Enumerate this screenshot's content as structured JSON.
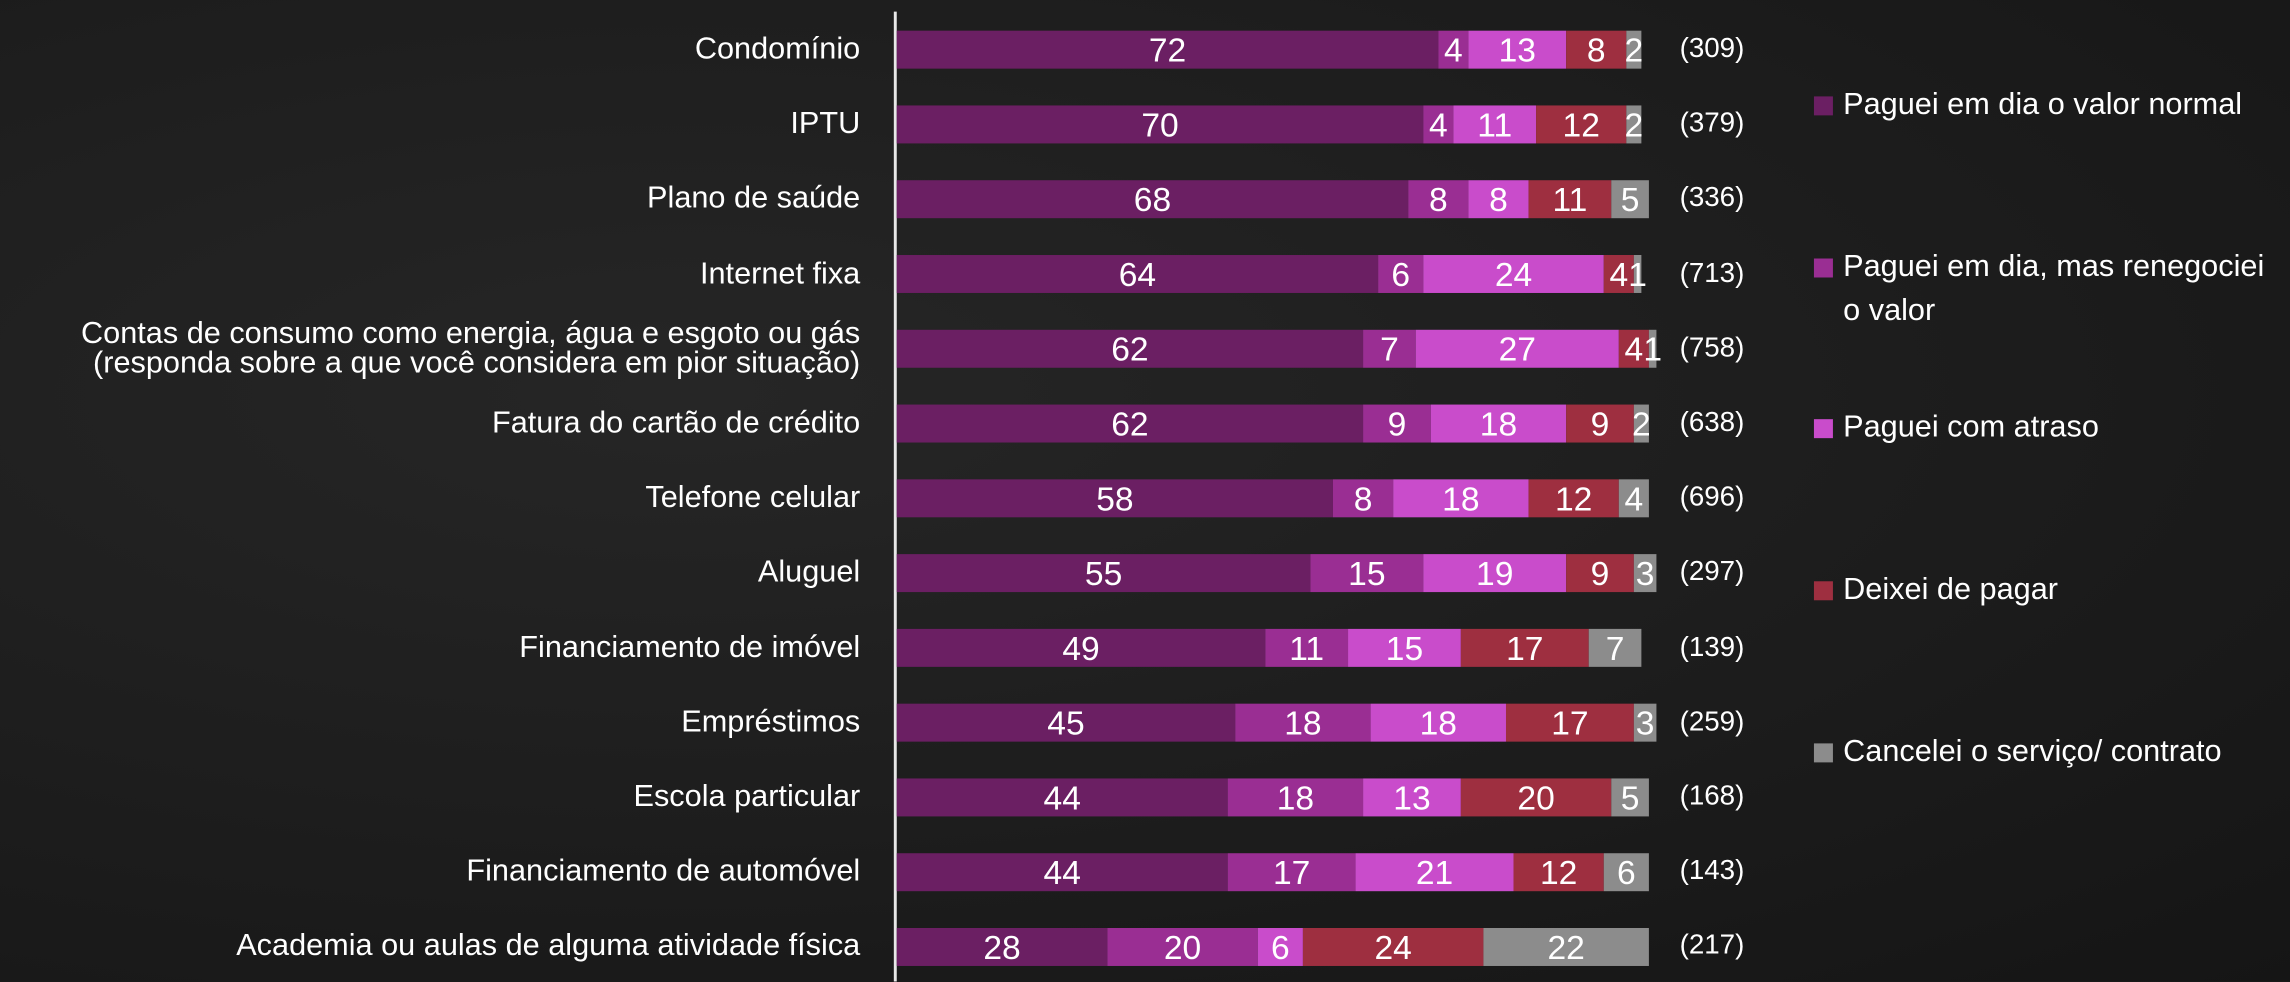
{
  "chart_data": {
    "type": "stacked-bar-horizontal",
    "categories": [
      "Condomínio",
      "IPTU",
      "Plano de saúde",
      "Internet fixa",
      "Contas de consumo como energia, água e esgoto ou gás\n(responda sobre a que você considera em pior situação)",
      "Fatura do cartão de crédito",
      "Telefone celular",
      "Aluguel",
      "Financiamento de imóvel",
      "Empréstimos",
      "Escola particular",
      "Financiamento de automóvel",
      "Academia ou aulas de alguma atividade física"
    ],
    "counts": [
      "(309)",
      "(379)",
      "(336)",
      "(713)",
      "(758)",
      "(638)",
      "(696)",
      "(297)",
      "(139)",
      "(259)",
      "(168)",
      "(143)",
      "(217)"
    ],
    "xlim": [
      0,
      100
    ],
    "legend": "right",
    "series": [
      {
        "name": "Paguei em dia o valor normal",
        "color": "#6b1f63",
        "values": [
          72,
          70,
          68,
          64,
          62,
          62,
          58,
          55,
          49,
          45,
          44,
          44,
          28
        ]
      },
      {
        "name": "Paguei em dia, mas renegociei o valor",
        "color": "#9a2e93",
        "values": [
          4,
          4,
          8,
          6,
          7,
          9,
          8,
          15,
          11,
          18,
          18,
          17,
          20
        ]
      },
      {
        "name": "Paguei com atraso",
        "color": "#c94ccb",
        "values": [
          13,
          11,
          8,
          24,
          27,
          18,
          18,
          19,
          15,
          18,
          13,
          21,
          6
        ]
      },
      {
        "name": "Deixei de pagar",
        "color": "#9e2f40",
        "values": [
          8,
          12,
          11,
          4,
          4,
          9,
          12,
          9,
          17,
          17,
          20,
          12,
          24
        ]
      },
      {
        "name": "Cancelei o serviço/ contrato",
        "color": "#8c8c8c",
        "values": [
          2,
          2,
          5,
          1,
          1,
          2,
          4,
          3,
          7,
          3,
          5,
          6,
          22
        ]
      }
    ]
  }
}
